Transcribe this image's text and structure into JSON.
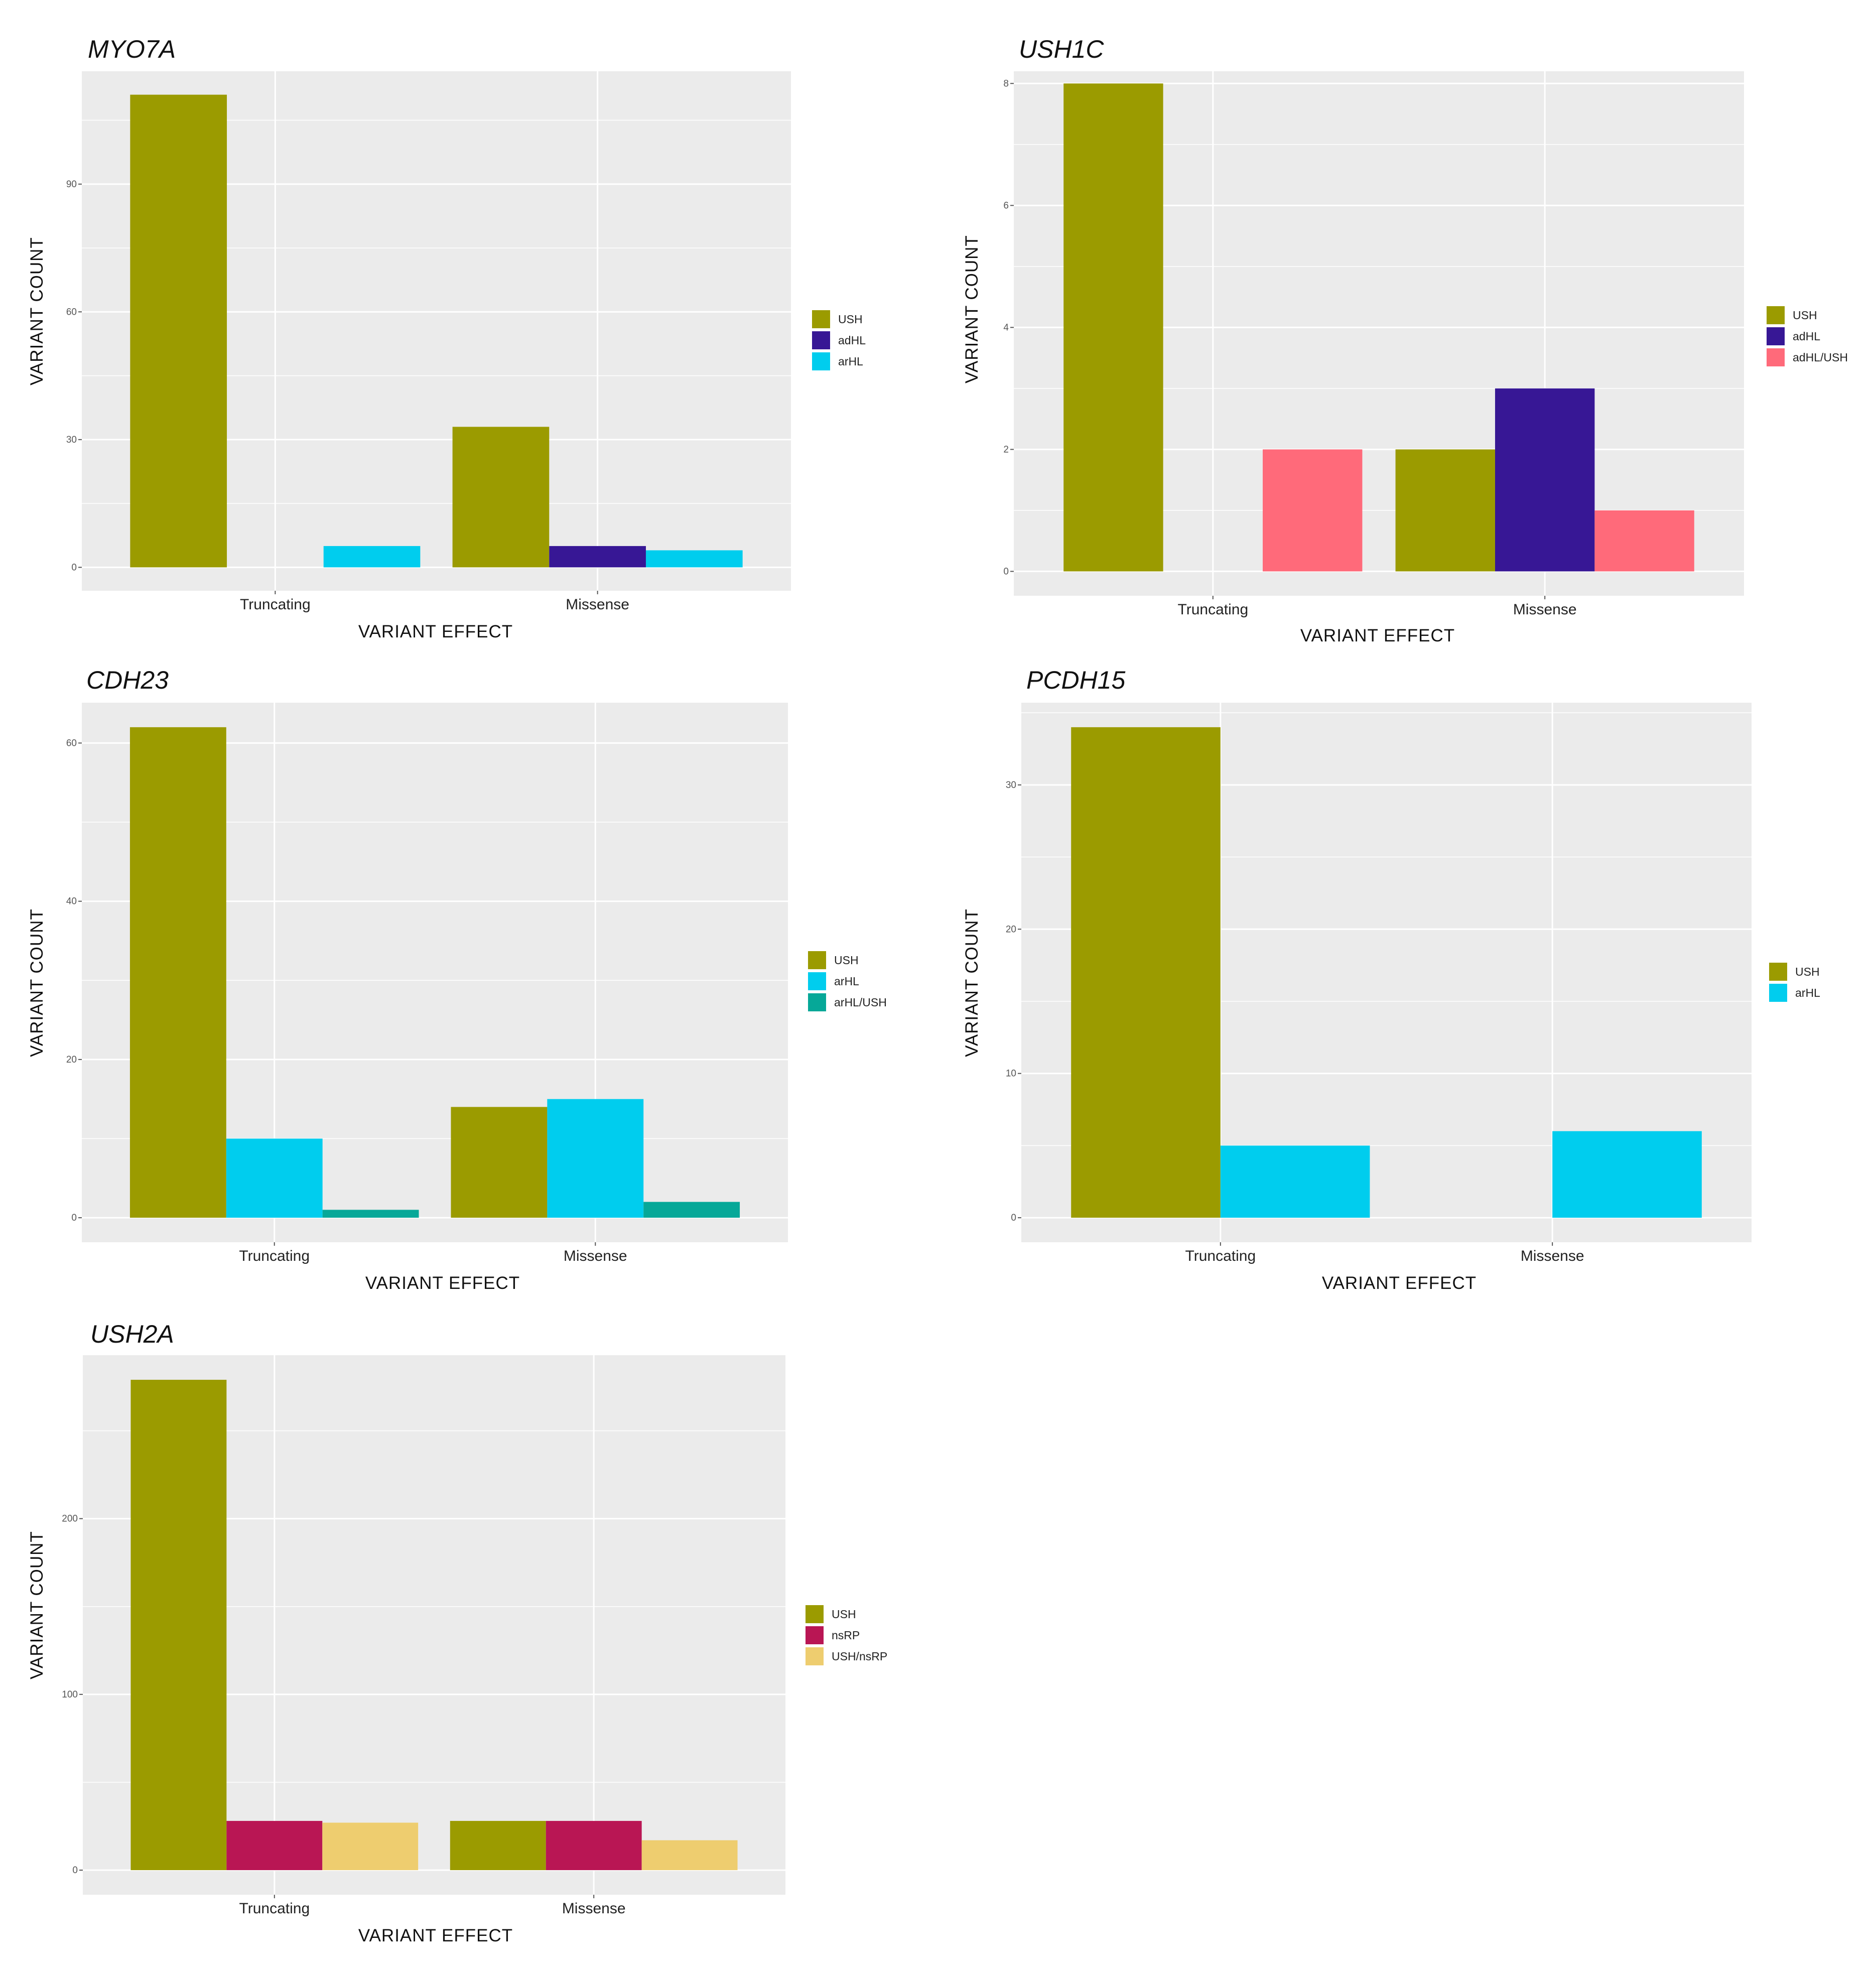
{
  "figure": {
    "description_color": "#ffffff"
  },
  "colors": {
    "USH": "#9b9b00",
    "adHL": "#371795",
    "arHL": "#00cdee",
    "adHL/USH": "#ff6a7a",
    "arHL/USH": "#06a898",
    "nsRP": "#b91654",
    "USH/nsRP": "#eecd6f",
    "panel_bg": "#ebebeb",
    "grid": "#ffffff"
  },
  "chart_data": [
    {
      "id": "myo7a",
      "type": "bar",
      "title": "MYO7A",
      "xlabel": "VARIANT EFFECT",
      "ylabel": "VARIANT COUNT",
      "categories": [
        "Truncating",
        "Missense"
      ],
      "series": [
        {
          "name": "USH",
          "values": [
            111,
            33
          ]
        },
        {
          "name": "adHL",
          "values": [
            0,
            5
          ]
        },
        {
          "name": "arHL",
          "values": [
            5,
            4
          ]
        }
      ],
      "ylim": [
        -5.5,
        116.5
      ],
      "yticks": [
        0,
        30,
        60,
        90
      ],
      "ytick_labels": [
        "0",
        "30",
        "60",
        "90"
      ],
      "legend": [
        {
          "key": "USH",
          "label": "USH"
        },
        {
          "key": "adHL",
          "label": "adHL"
        },
        {
          "key": "arHL",
          "label": "arHL"
        }
      ],
      "legend_position": "right"
    },
    {
      "id": "ush1c",
      "type": "bar",
      "title": "USH1C",
      "xlabel": "VARIANT EFFECT",
      "ylabel": "VARIANT COUNT",
      "categories": [
        "Truncating",
        "Missense"
      ],
      "series": [
        {
          "name": "USH",
          "values": [
            8,
            2
          ]
        },
        {
          "name": "adHL",
          "values": [
            0,
            3
          ]
        },
        {
          "name": "adHL/USH",
          "values": [
            2,
            1
          ]
        }
      ],
      "ylim": [
        -0.4,
        8.2
      ],
      "yticks": [
        0,
        2,
        4,
        6,
        8
      ],
      "ytick_labels": [
        "0",
        "2",
        "4",
        "6",
        "8"
      ],
      "legend": [
        {
          "key": "USH",
          "label": "USH"
        },
        {
          "key": "adHL",
          "label": "adHL"
        },
        {
          "key": "adHL/USH",
          "label": "adHL/USH"
        }
      ],
      "legend_position": "right"
    },
    {
      "id": "cdh23",
      "type": "bar",
      "title": "CDH23",
      "xlabel": "VARIANT EFFECT",
      "ylabel": "VARIANT COUNT",
      "categories": [
        "Truncating",
        "Missense"
      ],
      "series": [
        {
          "name": "USH",
          "values": [
            62,
            14
          ]
        },
        {
          "name": "arHL",
          "values": [
            10,
            15
          ]
        },
        {
          "name": "arHL/USH",
          "values": [
            1,
            2
          ]
        }
      ],
      "ylim": [
        -3.1,
        65.1
      ],
      "yticks": [
        0,
        20,
        40,
        60
      ],
      "ytick_labels": [
        "0",
        "20",
        "40",
        "60"
      ],
      "legend": [
        {
          "key": "USH",
          "label": "USH"
        },
        {
          "key": "arHL",
          "label": "arHL"
        },
        {
          "key": "arHL/USH",
          "label": "arHL/USH"
        }
      ],
      "legend_position": "right"
    },
    {
      "id": "pcdh15",
      "type": "bar",
      "title": "PCDH15",
      "xlabel": "VARIANT EFFECT",
      "ylabel": "VARIANT COUNT",
      "categories": [
        "Truncating",
        "Missense"
      ],
      "series": [
        {
          "name": "USH",
          "values": [
            34,
            0
          ]
        },
        {
          "name": "arHL",
          "values": [
            5,
            6
          ]
        }
      ],
      "ylim": [
        -1.7,
        35.7
      ],
      "yticks": [
        0,
        10,
        20,
        30
      ],
      "ytick_labels": [
        "0",
        "10",
        "20",
        "30"
      ],
      "legend": [
        {
          "key": "USH",
          "label": "USH"
        },
        {
          "key": "arHL",
          "label": "arHL"
        }
      ],
      "legend_position": "right"
    },
    {
      "id": "ush2a",
      "type": "bar",
      "title": "USH2A",
      "xlabel": "VARIANT EFFECT",
      "ylabel": "VARIANT COUNT",
      "categories": [
        "Truncating",
        "Missense"
      ],
      "series": [
        {
          "name": "USH",
          "values": [
            279,
            28
          ]
        },
        {
          "name": "nsRP",
          "values": [
            28,
            28
          ]
        },
        {
          "name": "USH/nsRP",
          "values": [
            27,
            17
          ]
        }
      ],
      "ylim": [
        -14,
        293
      ],
      "yticks": [
        0,
        100,
        200
      ],
      "ytick_labels": [
        "0",
        "100",
        "200"
      ],
      "legend": [
        {
          "key": "USH",
          "label": "USH"
        },
        {
          "key": "nsRP",
          "label": "nsRP"
        },
        {
          "key": "USH/nsRP",
          "label": "USH/nsRP"
        }
      ],
      "legend_position": "right"
    }
  ]
}
